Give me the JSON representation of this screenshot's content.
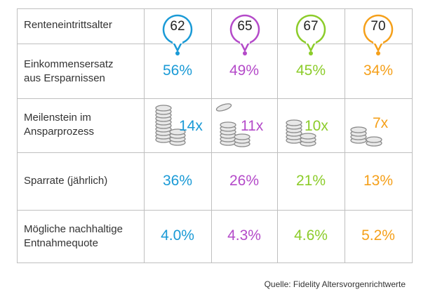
{
  "header_label": "Renteneintrittsalter",
  "colors": {
    "blue": "#1a9ad6",
    "purple": "#b44ac9",
    "green": "#8ccc2a",
    "orange": "#f5a01a"
  },
  "ages": [
    {
      "value": "62",
      "color": "#1a9ad6"
    },
    {
      "value": "65",
      "color": "#b44ac9"
    },
    {
      "value": "67",
      "color": "#8ccc2a"
    },
    {
      "value": "70",
      "color": "#f5a01a"
    }
  ],
  "rows": {
    "income": {
      "label_line1": "Einkommensersatz",
      "label_line2": "aus Ersparnissen",
      "values": [
        "56%",
        "49%",
        "45%",
        "34%"
      ]
    },
    "milestone": {
      "label_line1": "Meilenstein im",
      "label_line2": "Ansparprozess",
      "values": [
        "14x",
        "11x",
        "10x",
        "7x"
      ],
      "icon": "coin-stack-icon"
    },
    "savings": {
      "label": "Sparrate (jährlich)",
      "values": [
        "36%",
        "26%",
        "21%",
        "13%"
      ]
    },
    "withdrawal": {
      "label_line1": "Mögliche nachhaltige",
      "label_line2": "Entnahmequote",
      "values": [
        "4.0%",
        "4.3%",
        "4.6%",
        "5.2%"
      ]
    }
  },
  "source": "Quelle: Fidelity Altersvorgenrichtwerte"
}
